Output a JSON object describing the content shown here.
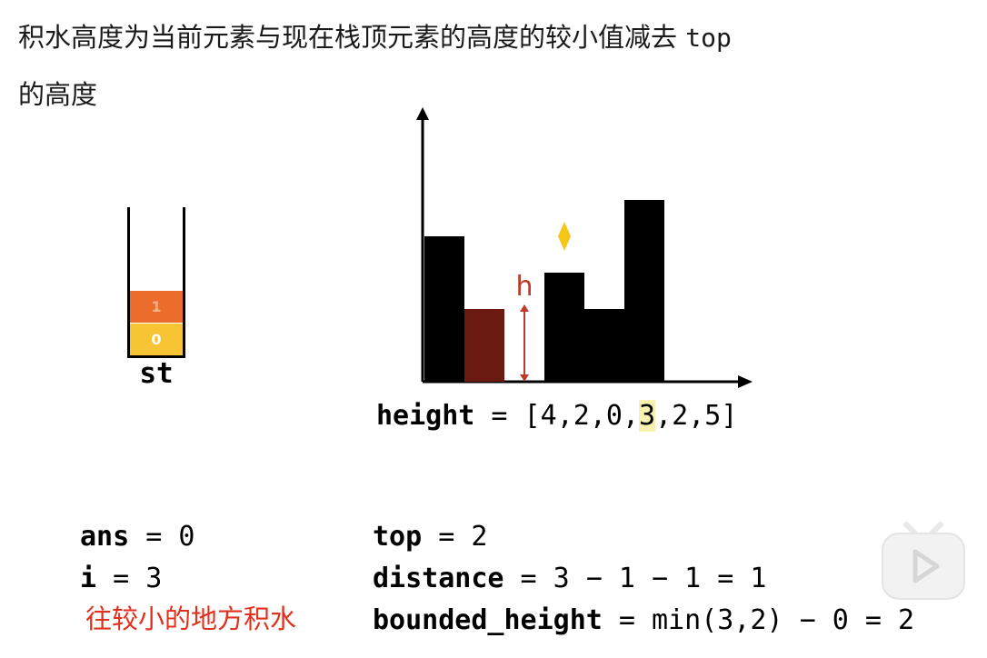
{
  "heading": {
    "text": "积水高度为当前元素与现在栈顶元素的高度的较小值减去",
    "code": "top",
    "line2": "的高度"
  },
  "stack": {
    "label": "st",
    "items": [
      "0",
      "1"
    ],
    "colors": {
      "bottom": "#f7c534",
      "top": "#ec6d2b"
    }
  },
  "chart_data": {
    "type": "bar",
    "values": [
      4,
      2,
      0,
      3,
      2,
      5
    ],
    "highlight_index": 1,
    "current_index": 3,
    "marker_label": "h",
    "bar_color": "#000000",
    "highlight_color": "#6b1a12",
    "arrow_color": "#c0392b",
    "marker_color": "#f5c518"
  },
  "array": {
    "prefix": "height = [",
    "items": [
      "4",
      "2",
      "0",
      "3",
      "2",
      "5"
    ],
    "suffix": "]",
    "highlight_index": 3
  },
  "vars_left": [
    {
      "name": "ans",
      "rest": " = 0"
    },
    {
      "name": "i",
      "rest": " = 3"
    }
  ],
  "vars_right": [
    {
      "name": "top",
      "rest": " = 2"
    },
    {
      "name": "distance",
      "rest": " = 3 − 1 − 1 = 1"
    },
    {
      "name": "bounded_height",
      "rest": " = min(3,2) − 0 = 2"
    }
  ],
  "note": "往较小的地方积水"
}
